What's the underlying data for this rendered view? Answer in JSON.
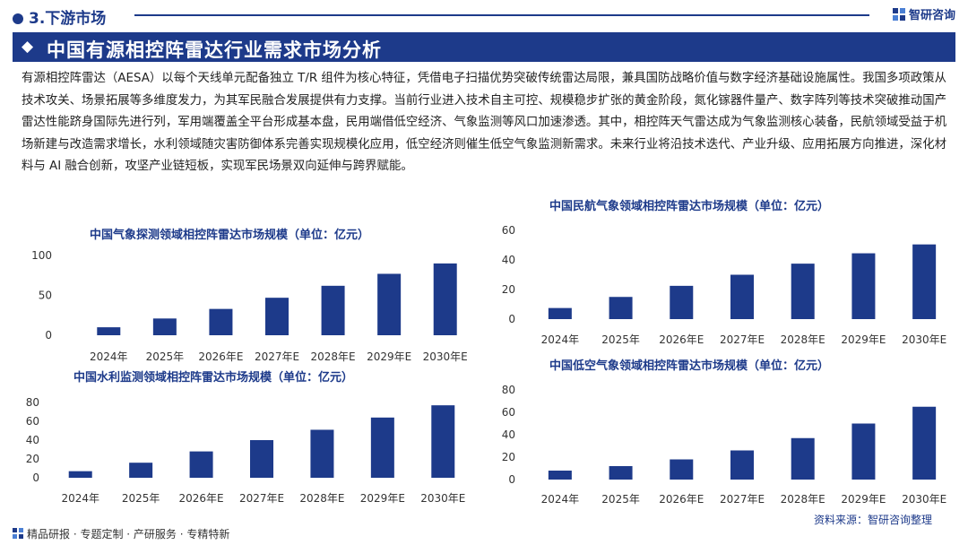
{
  "header": {
    "section_label": "3.下游市场",
    "brand_name": "智研咨询",
    "page_title": "中国有源相控阵雷达行业需求市场分析"
  },
  "intro_text": "有源相控阵雷达（AESA）以每个天线单元配备独立 T/R 组件为核心特征，凭借电子扫描优势突破传统雷达局限，兼具国防战略价值与数字经济基础设施属性。我国多项政策从技术攻关、场景拓展等多维度发力，为其军民融合发展提供有力支撑。当前行业进入技术自主可控、规模稳步扩张的黄金阶段，氮化镓器件量产、数字阵列等技术突破推动国产雷达性能跻身国际先进行列，军用端覆盖全平台形成基本盘，民用端借低空经济、气象监测等风口加速渗透。其中，相控阵天气雷达成为气象监测核心装备，民航领域受益于机场新建与改造需求增长，水利领域随灾害防御体系完善实现规模化应用，低空经济则催生低空气象监测新需求。未来行业将沿技术迭代、产业升级、应用拓展方向推进，深化材料与 AI 融合创新，攻坚产业链短板，实现军民场景双向延伸与跨界赋能。",
  "colors": {
    "primary": "#1d3a8a",
    "bar": "#1d3a8a"
  },
  "chart_data": [
    {
      "type": "bar",
      "title": "中国气象探测领域相控阵雷达市场规模（单位：亿元）",
      "categories": [
        "2024年",
        "2025年",
        "2026年E",
        "2027年E",
        "2028年E",
        "2029年E",
        "2030年E"
      ],
      "values": [
        10,
        21,
        33,
        47,
        62,
        77,
        90
      ],
      "yticks": [
        0,
        50,
        100
      ],
      "ylim": [
        0,
        100
      ],
      "xlabel": "",
      "ylabel": ""
    },
    {
      "type": "bar",
      "title": "中国民航气象领域相控阵雷达市场规模（单位：亿元）",
      "categories": [
        "2024年",
        "2025年",
        "2026年E",
        "2027年E",
        "2028年E",
        "2029年E",
        "2030年E"
      ],
      "values": [
        7.5,
        15,
        22.5,
        30,
        37.5,
        44.5,
        50.5
      ],
      "yticks": [
        0,
        20,
        40,
        60
      ],
      "ylim": [
        0,
        60
      ],
      "xlabel": "",
      "ylabel": ""
    },
    {
      "type": "bar",
      "title": "中国水利监测领域相控阵雷达市场规模（单位：亿元）",
      "categories": [
        "2024年",
        "2025年",
        "2026年E",
        "2027年E",
        "2028年E",
        "2029年E",
        "2030年E"
      ],
      "values": [
        7,
        16,
        28,
        40,
        51,
        64,
        77
      ],
      "yticks": [
        0,
        20,
        40,
        60,
        80
      ],
      "ylim": [
        0,
        80
      ],
      "xlabel": "",
      "ylabel": ""
    },
    {
      "type": "bar",
      "title": "中国低空气象领域相控阵雷达市场规模（单位：亿元）",
      "categories": [
        "2024年",
        "2025年",
        "2026年E",
        "2027年E",
        "2028年E",
        "2029年E",
        "2030年E"
      ],
      "values": [
        8,
        12,
        18,
        26,
        37,
        50,
        65
      ],
      "yticks": [
        0,
        20,
        40,
        60,
        80
      ],
      "ylim": [
        0,
        80
      ],
      "xlabel": "",
      "ylabel": ""
    }
  ],
  "source_text": "资料来源：智研咨询整理",
  "footer_text": "精品研报 · 专题定制 · 产研服务 · 专精特新"
}
